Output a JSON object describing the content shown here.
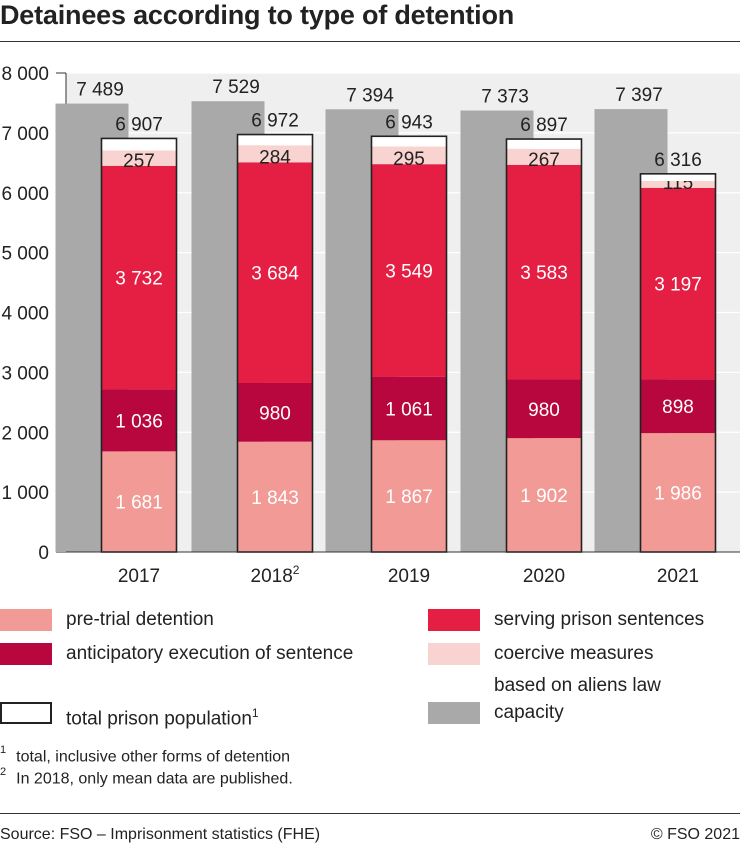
{
  "title": "Detainees according to type of detention",
  "chart_data": {
    "type": "bar",
    "stacked": true,
    "categories": [
      "2017",
      "2018",
      "2019",
      "2020",
      "2021"
    ],
    "category_superscripts": [
      "",
      "2",
      "",
      "",
      ""
    ],
    "ylim": [
      0,
      8000
    ],
    "yticks": [
      {
        "value": 0,
        "label": "0"
      },
      {
        "value": 1000,
        "label": "1 000"
      },
      {
        "value": 2000,
        "label": "2 000"
      },
      {
        "value": 3000,
        "label": "3 000"
      },
      {
        "value": 4000,
        "label": "4 000"
      },
      {
        "value": 5000,
        "label": "5 000"
      },
      {
        "value": 6000,
        "label": "6 000"
      },
      {
        "value": 7000,
        "label": "7 000"
      },
      {
        "value": 8000,
        "label": "8 000"
      }
    ],
    "grid": true,
    "capacity": {
      "name": "capacity",
      "color": "#a9a9a9",
      "values": [
        7489,
        7529,
        7394,
        7373,
        7397
      ],
      "labels": [
        "7 489",
        "7 529",
        "7 394",
        "7 373",
        "7 397"
      ]
    },
    "total": {
      "name": "total prison population",
      "color": "#ffffff",
      "values": [
        6907,
        6972,
        6943,
        6897,
        6316
      ],
      "labels": [
        "6 907",
        "6 972",
        "6 943",
        "6 897",
        "6 316"
      ]
    },
    "series": [
      {
        "name": "pre-trial detention",
        "color": "#f29b96",
        "values": [
          1681,
          1843,
          1867,
          1902,
          1986
        ],
        "labels": [
          "1 681",
          "1 843",
          "1 867",
          "1 902",
          "1 986"
        ]
      },
      {
        "name": "anticipatory execution of sentence",
        "color": "#b8073f",
        "values": [
          1036,
          980,
          1061,
          980,
          898
        ],
        "labels": [
          "1 036",
          "980",
          "1 061",
          "980",
          "898"
        ]
      },
      {
        "name": "serving prison sentences",
        "color": "#e51e43",
        "values": [
          3732,
          3684,
          3549,
          3583,
          3197
        ],
        "labels": [
          "3 732",
          "3 684",
          "3 549",
          "3 583",
          "3 197"
        ]
      },
      {
        "name": "coercive measures based on aliens law",
        "color": "#f9d3cf",
        "values": [
          257,
          284,
          295,
          267,
          115
        ],
        "labels": [
          "257",
          "284",
          "295",
          "267",
          "115"
        ]
      }
    ]
  },
  "legend": {
    "pretrial": {
      "label": "pre-trial detention",
      "color": "#f29b96"
    },
    "serving": {
      "label": "serving prison sentences",
      "color": "#e51e43"
    },
    "anticipatory": {
      "label": "anticipatory execution of sentence",
      "color": "#b8073f"
    },
    "coercive": {
      "label_line1": "coercive measures",
      "label_line2": "based on aliens law",
      "color": "#f9d3cf"
    },
    "total": {
      "label": "total prison population",
      "sup": "1"
    },
    "capacity": {
      "label": "capacity",
      "color": "#a9a9a9"
    }
  },
  "footnotes": [
    {
      "mark": "1",
      "text": "total, inclusive other forms of detention"
    },
    {
      "mark": "2",
      "text": "In 2018, only mean data are published."
    }
  ],
  "source": "Source: FSO – Imprisonment statistics (FHE)",
  "copyright": "© FSO 2021"
}
